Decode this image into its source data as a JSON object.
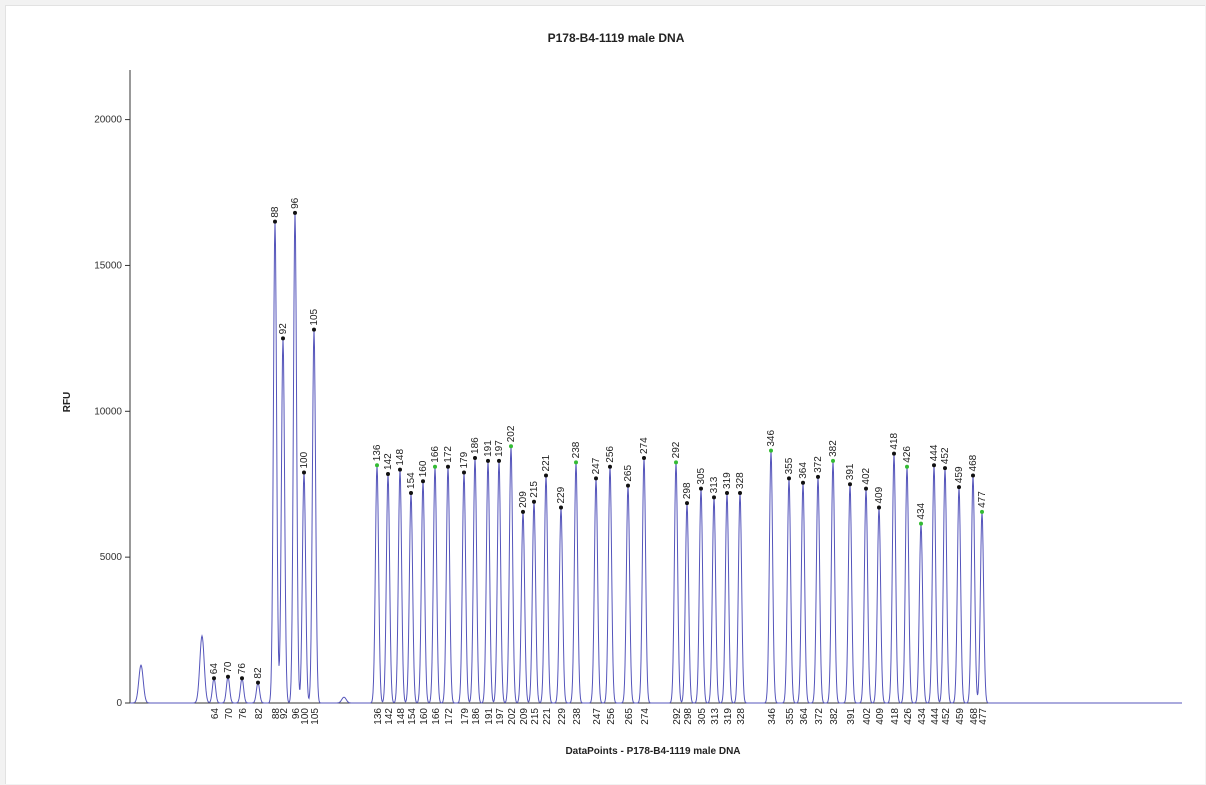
{
  "chart_data": {
    "type": "line",
    "title": "P178-B4-1119 male DNA",
    "xlabel": "DataPoints - P178-B4-1119 male DNA",
    "ylabel": "RFU",
    "ylim": [
      0,
      21700
    ],
    "yticks": [
      0,
      5000,
      10000,
      15000,
      20000
    ],
    "ytick_labels": [
      "0",
      "5000",
      "10000",
      "15000",
      "20000"
    ],
    "grid": false,
    "legend": "none",
    "line_color": "#5555bb",
    "marker_color_called": "#111111",
    "marker_color_highlight": "#33bb33",
    "peaks": [
      {
        "label": "64",
        "value": 850,
        "marker": "called"
      },
      {
        "label": "70",
        "value": 900,
        "marker": "called"
      },
      {
        "label": "76",
        "value": 850,
        "marker": "called"
      },
      {
        "label": "82",
        "value": 700,
        "marker": "called"
      },
      {
        "label": "88",
        "value": 16500,
        "marker": "called"
      },
      {
        "label": "92",
        "value": 12500,
        "marker": "called"
      },
      {
        "label": "96",
        "value": 16800,
        "marker": "called"
      },
      {
        "label": "100",
        "value": 7900,
        "marker": "called"
      },
      {
        "label": "105",
        "value": 12800,
        "marker": "called"
      },
      {
        "label": "136",
        "value": 8150,
        "marker": "highlight"
      },
      {
        "label": "142",
        "value": 7850,
        "marker": "called"
      },
      {
        "label": "148",
        "value": 8000,
        "marker": "called"
      },
      {
        "label": "154",
        "value": 7200,
        "marker": "called"
      },
      {
        "label": "160",
        "value": 7600,
        "marker": "called"
      },
      {
        "label": "166",
        "value": 8100,
        "marker": "highlight"
      },
      {
        "label": "172",
        "value": 8100,
        "marker": "called"
      },
      {
        "label": "179",
        "value": 7900,
        "marker": "called"
      },
      {
        "label": "186",
        "value": 8400,
        "marker": "called"
      },
      {
        "label": "191",
        "value": 8300,
        "marker": "called"
      },
      {
        "label": "197",
        "value": 8300,
        "marker": "called"
      },
      {
        "label": "202",
        "value": 8800,
        "marker": "highlight"
      },
      {
        "label": "209",
        "value": 6550,
        "marker": "called"
      },
      {
        "label": "215",
        "value": 6900,
        "marker": "called"
      },
      {
        "label": "221",
        "value": 7800,
        "marker": "called"
      },
      {
        "label": "229",
        "value": 6700,
        "marker": "called"
      },
      {
        "label": "238",
        "value": 8250,
        "marker": "highlight"
      },
      {
        "label": "247",
        "value": 7700,
        "marker": "called"
      },
      {
        "label": "256",
        "value": 8100,
        "marker": "called"
      },
      {
        "label": "265",
        "value": 7450,
        "marker": "called"
      },
      {
        "label": "274",
        "value": 8400,
        "marker": "called"
      },
      {
        "label": "292",
        "value": 8250,
        "marker": "highlight"
      },
      {
        "label": "298",
        "value": 6850,
        "marker": "called"
      },
      {
        "label": "305",
        "value": 7350,
        "marker": "called"
      },
      {
        "label": "313",
        "value": 7050,
        "marker": "called"
      },
      {
        "label": "319",
        "value": 7200,
        "marker": "called"
      },
      {
        "label": "328",
        "value": 7200,
        "marker": "called"
      },
      {
        "label": "346",
        "value": 8650,
        "marker": "highlight"
      },
      {
        "label": "355",
        "value": 7700,
        "marker": "called"
      },
      {
        "label": "364",
        "value": 7550,
        "marker": "called"
      },
      {
        "label": "372",
        "value": 7750,
        "marker": "called"
      },
      {
        "label": "382",
        "value": 8300,
        "marker": "highlight"
      },
      {
        "label": "391",
        "value": 7500,
        "marker": "called"
      },
      {
        "label": "402",
        "value": 7350,
        "marker": "called"
      },
      {
        "label": "409",
        "value": 6700,
        "marker": "called"
      },
      {
        "label": "418",
        "value": 8550,
        "marker": "called"
      },
      {
        "label": "426",
        "value": 8100,
        "marker": "highlight"
      },
      {
        "label": "434",
        "value": 6150,
        "marker": "highlight"
      },
      {
        "label": "444",
        "value": 8150,
        "marker": "called"
      },
      {
        "label": "452",
        "value": 8050,
        "marker": "called"
      },
      {
        "label": "459",
        "value": 7400,
        "marker": "called"
      },
      {
        "label": "468",
        "value": 7800,
        "marker": "called"
      },
      {
        "label": "477",
        "value": 6550,
        "marker": "highlight"
      }
    ],
    "unlabeled_peaks": [
      {
        "value": 1300
      },
      {
        "value": 2300
      },
      {
        "value": 200
      }
    ]
  }
}
